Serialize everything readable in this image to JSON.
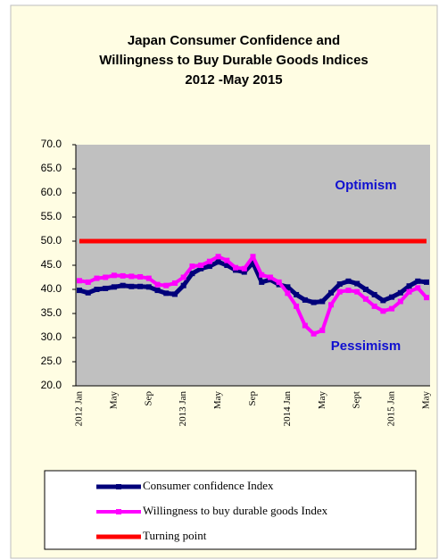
{
  "chart_data": {
    "type": "line",
    "title": [
      "Japan Consumer Confidence and",
      "Willingness to Buy Durable Goods Indices",
      "2012 -May  2015"
    ],
    "categories": [
      "2012 Jan",
      null,
      null,
      null,
      "May",
      null,
      null,
      null,
      "Sep",
      null,
      null,
      null,
      "2013 Jan",
      null,
      null,
      null,
      "May",
      null,
      null,
      null,
      "Sep",
      null,
      null,
      null,
      "2014 Jan",
      null,
      null,
      null,
      "May",
      null,
      null,
      null,
      "Sept",
      null,
      null,
      null,
      "2015 Jan",
      null,
      null,
      null,
      "May"
    ],
    "series": [
      {
        "name": "Consumer confidence Index",
        "color": "#00007a",
        "values": [
          39.8,
          39.3,
          40.0,
          40.2,
          40.5,
          40.8,
          40.6,
          40.6,
          40.5,
          39.8,
          39.2,
          39.0,
          40.8,
          43.3,
          44.3,
          44.8,
          45.7,
          45.0,
          44.0,
          43.6,
          45.5,
          41.5,
          42.0,
          41.0,
          40.5,
          38.9,
          37.8,
          37.3,
          37.5,
          39.3,
          41.1,
          41.7,
          41.2,
          40.0,
          38.9,
          37.7,
          38.4,
          39.3,
          40.7,
          41.7,
          41.5
        ]
      },
      {
        "name": "Willingness to buy durable goods Index",
        "color": "#ff00ff",
        "values": [
          41.8,
          41.5,
          42.3,
          42.5,
          42.9,
          42.8,
          42.7,
          42.6,
          42.3,
          41.0,
          40.8,
          41.3,
          42.5,
          44.8,
          45.0,
          45.8,
          46.8,
          46.0,
          44.5,
          44.3,
          46.8,
          43.0,
          42.5,
          41.5,
          39.2,
          36.5,
          32.5,
          30.8,
          31.5,
          36.8,
          39.5,
          39.8,
          39.5,
          38.0,
          36.5,
          35.5,
          36.0,
          37.5,
          39.5,
          40.3,
          38.3
        ]
      },
      {
        "name": "Turning point",
        "color": "#ff0000",
        "values": [
          50,
          50,
          50,
          50,
          50,
          50,
          50,
          50,
          50,
          50,
          50,
          50,
          50,
          50,
          50,
          50,
          50,
          50,
          50,
          50,
          50,
          50,
          50,
          50,
          50,
          50,
          50,
          50,
          50,
          50,
          50,
          50,
          50,
          50,
          50,
          50,
          50,
          50,
          50,
          50,
          50
        ]
      }
    ],
    "ylim": [
      20,
      70
    ],
    "yticks": [
      {
        "value": 20,
        "label": "20.0"
      },
      {
        "value": 25,
        "label": "25.0"
      },
      {
        "value": 30,
        "label": "30.0"
      },
      {
        "value": 35,
        "label": "35.0"
      },
      {
        "value": 40,
        "label": "40.0"
      },
      {
        "value": 45,
        "label": "45.0"
      },
      {
        "value": 50,
        "label": "50.0"
      },
      {
        "value": 55,
        "label": "55.0"
      },
      {
        "value": 60,
        "label": "60.0"
      },
      {
        "value": 65,
        "label": "65.0"
      },
      {
        "value": 70,
        "label": "70.0"
      }
    ],
    "annotations": [
      "Optimism",
      "Pessimism"
    ],
    "legend": "bottom"
  }
}
